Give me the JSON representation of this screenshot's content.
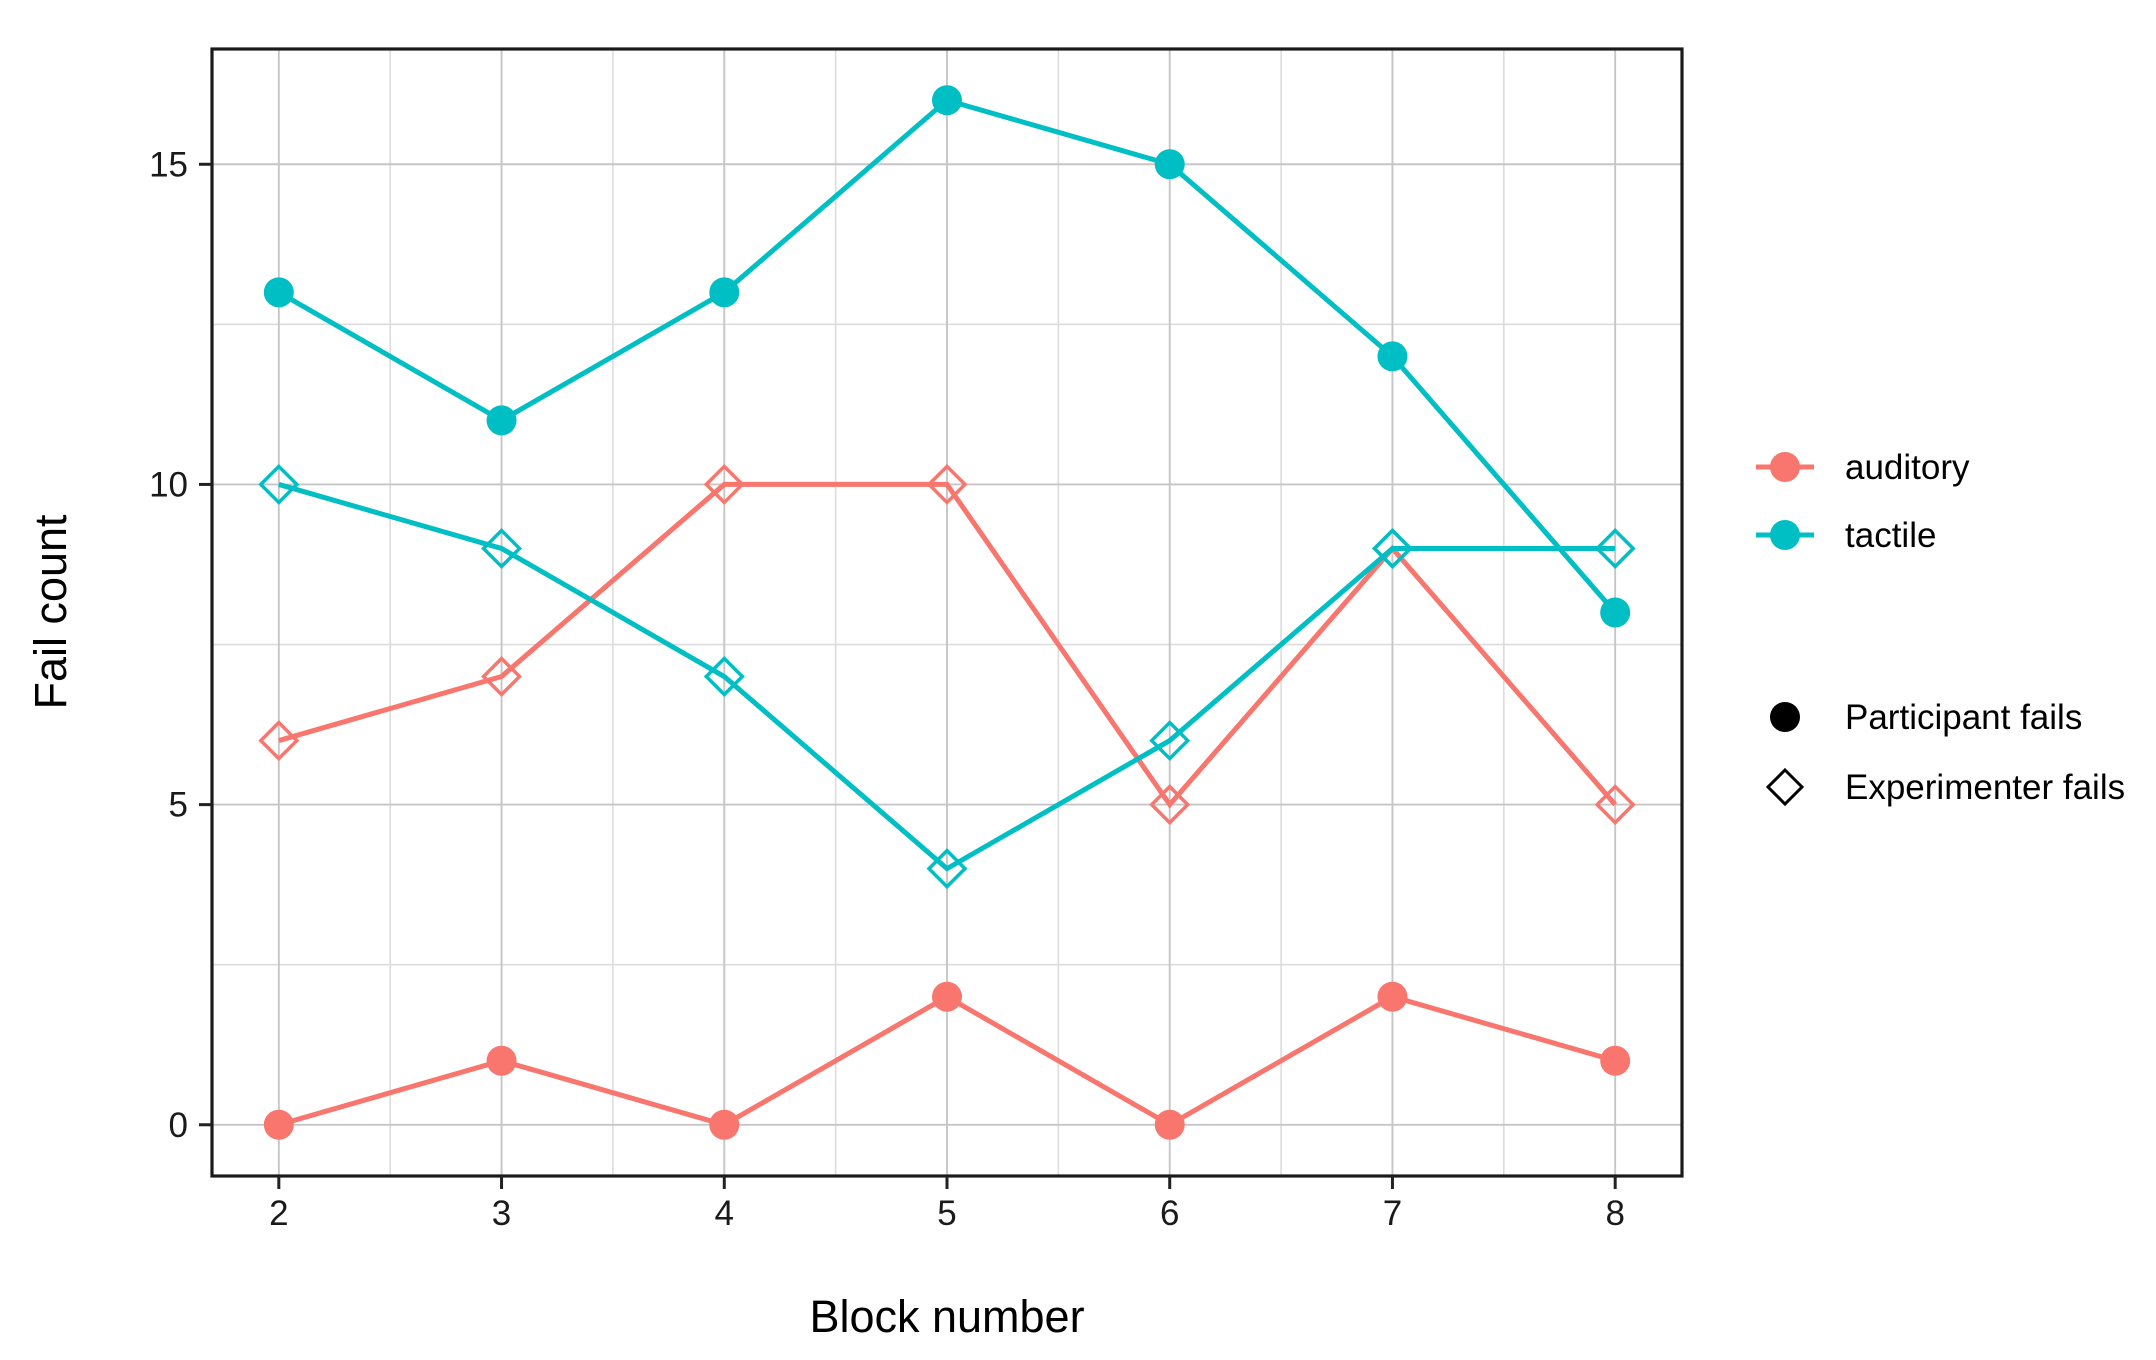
{
  "chart_data": {
    "type": "line",
    "title": "",
    "xlabel": "Block number",
    "ylabel": "Fail count",
    "x": [
      2,
      3,
      4,
      5,
      6,
      7,
      8
    ],
    "x_ticks": [
      2,
      3,
      4,
      5,
      6,
      7,
      8
    ],
    "y_ticks": [
      0,
      5,
      10,
      15
    ],
    "xlim": [
      1.7,
      8.3
    ],
    "ylim": [
      -0.8,
      16.8
    ],
    "grid": "major and minor gridlines on, white panel, black panel border",
    "legend_position": "right",
    "series": [
      {
        "name": "auditory",
        "role": "Participant fails",
        "shape": "circle-filled",
        "color": "#F8766D",
        "values": [
          0,
          1,
          0,
          2,
          0,
          2,
          1
        ]
      },
      {
        "name": "auditory",
        "role": "Experimenter fails",
        "shape": "diamond-open",
        "color": "#F8766D",
        "values": [
          6,
          7,
          10,
          10,
          5,
          9,
          5
        ]
      },
      {
        "name": "tactile",
        "role": "Participant fails",
        "shape": "circle-filled",
        "color": "#00BFC4",
        "values": [
          13,
          11,
          13,
          16,
          15,
          12,
          8
        ]
      },
      {
        "name": "tactile",
        "role": "Experimenter fails",
        "shape": "diamond-open",
        "color": "#00BFC4",
        "values": [
          10,
          9,
          7,
          4,
          6,
          9,
          9
        ]
      }
    ],
    "legends": {
      "color": {
        "items": [
          {
            "label": "auditory",
            "color": "#F8766D"
          },
          {
            "label": "tactile",
            "color": "#00BFC4"
          }
        ]
      },
      "shape": {
        "items": [
          {
            "label": "Participant fails",
            "shape": "circle-filled"
          },
          {
            "label": "Experimenter fails",
            "shape": "diamond-open"
          }
        ]
      }
    }
  }
}
